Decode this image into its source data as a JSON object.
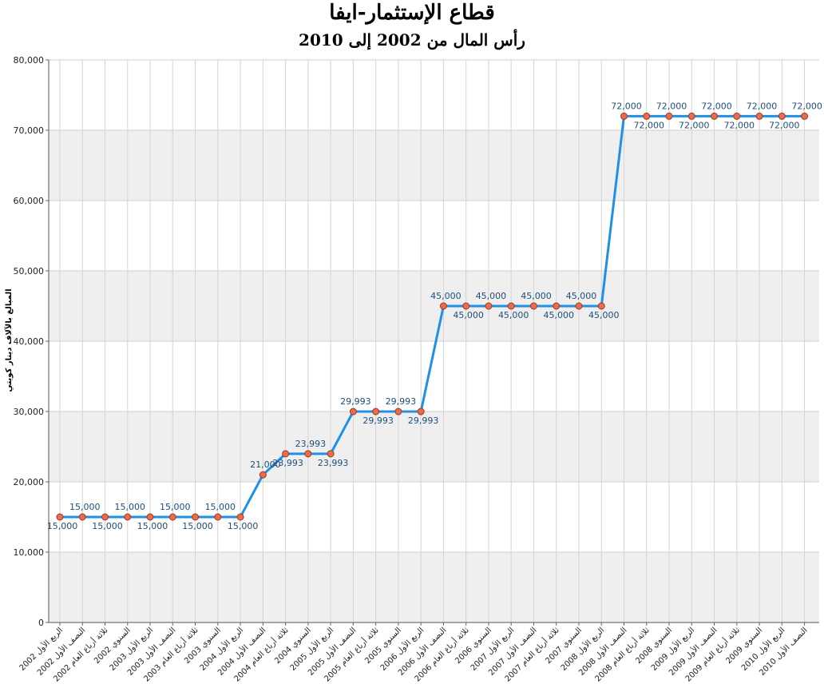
{
  "chart_data": {
    "type": "line",
    "title": "قطاع الإستثمار-ايفا",
    "subtitle": "رأس المال من 2002 إلى 2010",
    "ylabel": "المبالغ بالآلاف دينار كويتي",
    "ylim": [
      0,
      80000
    ],
    "yticks": [
      0,
      10000,
      20000,
      30000,
      40000,
      50000,
      60000,
      70000,
      80000
    ],
    "ytick_labels": [
      "0",
      "10,000",
      "20,000",
      "30,000",
      "40,000",
      "50,000",
      "60,000",
      "70,000",
      "80,000"
    ],
    "grid": "horizontal-bands and vertical lines",
    "line_color": "#1e90e6",
    "marker_color": "#ee6a4a",
    "categories": [
      "2002 الربع الأول",
      "2002 النصف الأول",
      "2002 ثلاثة أرباع العام",
      "2002 السنوي",
      "2003 الربع الأول",
      "2003 النصف الأول",
      "2003 ثلاثة أرباع العام",
      "2003 السنوي",
      "2004 الربع الأول",
      "2004 النصف الأول",
      "2004 ثلاثة أرباع العام",
      "2004 السنوي",
      "2005 الربع الأول",
      "2005 النصف الأول",
      "2005 ثلاثة أرباع العام",
      "2005 السنوي",
      "2006 الربع الأول",
      "2006 النصف الأول",
      "2006 ثلاثة أرباع العام",
      "2006 السنوي",
      "2007 الربع الأول",
      "2007 النصف الأول",
      "2007 ثلاثة أرباع العام",
      "2007 السنوي",
      "2008 الربع الأول",
      "2008 النصف الأول",
      "2008 ثلاثة أرباع العام",
      "2008 السنوي",
      "2009 الربع الأول",
      "2009 النصف الأول",
      "2009 ثلاثة أرباع العام",
      "2009 السنوي",
      "2010 الربع الأول",
      "2010 النصف الأول"
    ],
    "values": [
      15000,
      15000,
      15000,
      15000,
      15000,
      15000,
      15000,
      15000,
      15000,
      21000,
      23993,
      23993,
      23993,
      29993,
      29993,
      29993,
      29993,
      45000,
      45000,
      45000,
      45000,
      45000,
      45000,
      45000,
      45000,
      72000,
      72000,
      72000,
      72000,
      72000,
      72000,
      72000,
      72000,
      72000
    ],
    "data_labels": [
      "15,000",
      "15,000",
      "15,000",
      "15,000",
      "15,000",
      "15,000",
      "15,000",
      "15,000",
      "15,000",
      "21,000",
      "23,993",
      "23,993",
      "23,993",
      "29,993",
      "29,993",
      "29,993",
      "29,993",
      "45,000",
      "45,000",
      "45,000",
      "45,000",
      "45,000",
      "45,000",
      "45,000",
      "45,000",
      "72,000",
      "72,000",
      "72,000",
      "72,000",
      "72,000",
      "72,000",
      "72,000",
      "72,000",
      "72,000"
    ]
  }
}
